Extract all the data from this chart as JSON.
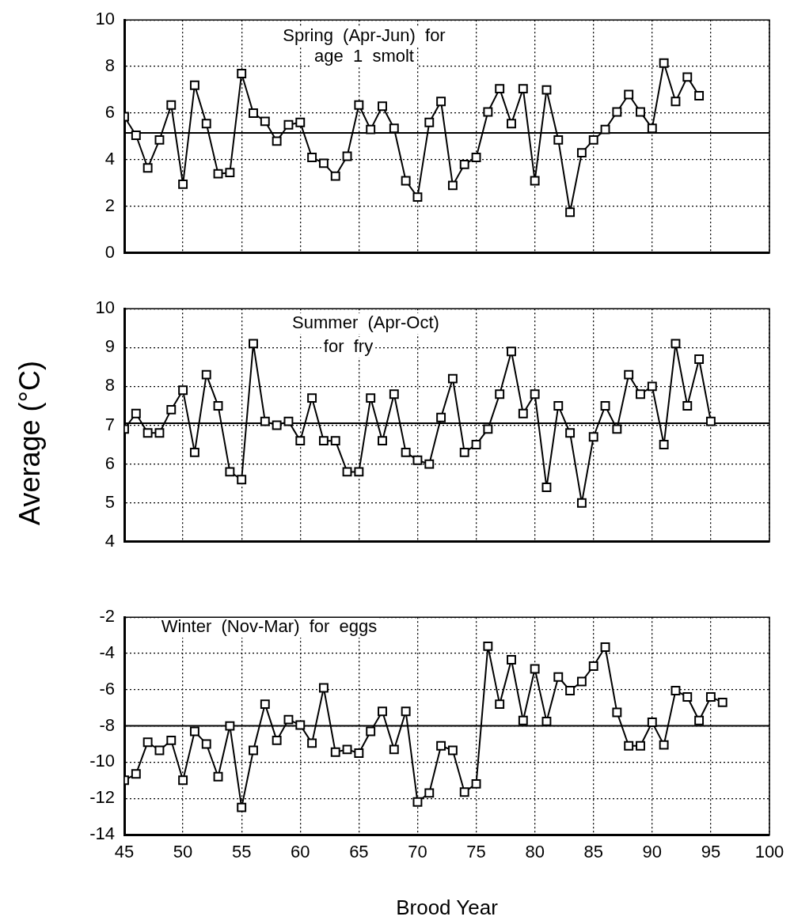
{
  "chart_data": [
    {
      "type": "line",
      "x": [
        45,
        46,
        47,
        48,
        49,
        50,
        51,
        52,
        53,
        54,
        55,
        56,
        57,
        58,
        59,
        60,
        61,
        62,
        63,
        64,
        65,
        66,
        67,
        68,
        69,
        70,
        71,
        72,
        73,
        74,
        75,
        76,
        77,
        78,
        79,
        80,
        81,
        82,
        83,
        84,
        85,
        86,
        87,
        88,
        89,
        90,
        91,
        92,
        93,
        94
      ],
      "series": [
        {
          "color": "#000000",
          "values": [
            5.85,
            5.05,
            3.65,
            4.85,
            6.35,
            2.95,
            7.2,
            5.55,
            3.4,
            3.45,
            7.7,
            6.0,
            5.65,
            4.8,
            5.5,
            5.6,
            4.1,
            3.85,
            3.3,
            4.15,
            6.35,
            5.3,
            6.3,
            5.35,
            3.1,
            2.4,
            5.6,
            6.5,
            2.9,
            3.8,
            4.1,
            6.05,
            7.05,
            5.55,
            7.05,
            3.1,
            7.0,
            4.85,
            1.75,
            4.3,
            4.85,
            5.3,
            6.05,
            6.8,
            6.05,
            5.35,
            8.15,
            6.5,
            7.55,
            6.75
          ]
        }
      ],
      "annotations": [
        "Spring  (Apr-Jun)  for",
        "age  1  smolt"
      ],
      "ref_lines": [
        {
          "axis": "y",
          "value": 5.15,
          "color": "#000000"
        }
      ],
      "xlim": [
        45,
        100
      ],
      "xticks": [
        45,
        50,
        55,
        60,
        65,
        70,
        75,
        80,
        85,
        90,
        95,
        100
      ],
      "ylim": [
        0,
        10
      ],
      "yticks": [
        0,
        2,
        4,
        6,
        8,
        10
      ],
      "tick_labels": "y",
      "grid": true,
      "marker": "square",
      "line_style": "solid",
      "legend": false
    },
    {
      "type": "line",
      "x": [
        45,
        46,
        47,
        48,
        49,
        50,
        51,
        52,
        53,
        54,
        55,
        56,
        57,
        58,
        59,
        60,
        61,
        62,
        63,
        64,
        65,
        66,
        67,
        68,
        69,
        70,
        71,
        72,
        73,
        74,
        75,
        76,
        77,
        78,
        79,
        80,
        81,
        82,
        83,
        84,
        85,
        86,
        87,
        88,
        89,
        90,
        91,
        92,
        93,
        94,
        95
      ],
      "series": [
        {
          "color": "#000000",
          "values": [
            6.9,
            7.3,
            6.8,
            6.8,
            7.4,
            7.9,
            6.3,
            8.3,
            7.5,
            5.8,
            5.6,
            9.1,
            7.1,
            7.0,
            7.1,
            6.6,
            7.7,
            6.6,
            6.6,
            5.8,
            5.8,
            7.7,
            6.6,
            7.8,
            6.3,
            6.1,
            6.0,
            7.2,
            8.2,
            6.3,
            6.5,
            6.9,
            7.8,
            8.9,
            7.3,
            7.8,
            5.4,
            7.5,
            6.8,
            5.0,
            6.7,
            7.5,
            6.9,
            8.3,
            7.8,
            8.0,
            6.5,
            9.1,
            7.5,
            8.7,
            7.1
          ]
        }
      ],
      "ylabel": "Average (°C)",
      "annotations": [
        "Summer  (Apr-Oct)",
        "for  fry"
      ],
      "ref_lines": [
        {
          "axis": "y",
          "value": 7.05,
          "color": "#000000"
        }
      ],
      "xlim": [
        45,
        100
      ],
      "xticks": [
        45,
        50,
        55,
        60,
        65,
        70,
        75,
        80,
        85,
        90,
        95,
        100
      ],
      "ylim": [
        4,
        10
      ],
      "yticks": [
        4,
        5,
        6,
        7,
        8,
        9,
        10
      ],
      "tick_labels": "y",
      "grid": true,
      "marker": "square",
      "line_style": "solid",
      "legend": false
    },
    {
      "type": "line",
      "x": [
        45,
        46,
        47,
        48,
        49,
        50,
        51,
        52,
        53,
        54,
        55,
        56,
        57,
        58,
        59,
        60,
        61,
        62,
        63,
        64,
        65,
        66,
        67,
        68,
        69,
        70,
        71,
        72,
        73,
        74,
        75,
        76,
        77,
        78,
        79,
        80,
        81,
        82,
        83,
        84,
        85,
        86,
        87,
        88,
        89,
        90,
        91,
        92,
        93,
        94,
        95,
        96
      ],
      "series": [
        {
          "color": "#000000",
          "values": [
            -11.0,
            -10.65,
            -8.9,
            -9.35,
            -8.8,
            -11.0,
            -8.3,
            -9.0,
            -10.8,
            -8.0,
            -12.5,
            -9.35,
            -6.8,
            -8.8,
            -7.65,
            -7.95,
            -8.95,
            -5.9,
            -9.45,
            -9.3,
            -9.5,
            -8.3,
            -7.2,
            -9.3,
            -7.2,
            -12.2,
            -11.7,
            -9.1,
            -9.35,
            -11.65,
            -11.2,
            -3.6,
            -6.8,
            -4.35,
            -7.7,
            -4.85,
            -7.75,
            -5.3,
            -6.05,
            -5.55,
            -4.7,
            -3.65,
            -7.25,
            -9.1,
            -9.1,
            -7.8,
            -9.05,
            -6.05,
            -6.4,
            -7.7,
            -6.4,
            -6.7
          ]
        }
      ],
      "xlabel": "Brood Year",
      "annotations": [
        "Winter  (Nov-Mar)  for  eggs"
      ],
      "ref_lines": [
        {
          "axis": "y",
          "value": -8,
          "color": "#000000"
        }
      ],
      "xlim": [
        45,
        100
      ],
      "xticks": [
        45,
        50,
        55,
        60,
        65,
        70,
        75,
        80,
        85,
        90,
        95,
        100
      ],
      "ylim": [
        -14,
        -2
      ],
      "yticks": [
        -14,
        -12,
        -10,
        -8,
        -6,
        -4,
        -2
      ],
      "grid": true,
      "marker": "square",
      "line_style": "solid",
      "legend": false
    }
  ]
}
